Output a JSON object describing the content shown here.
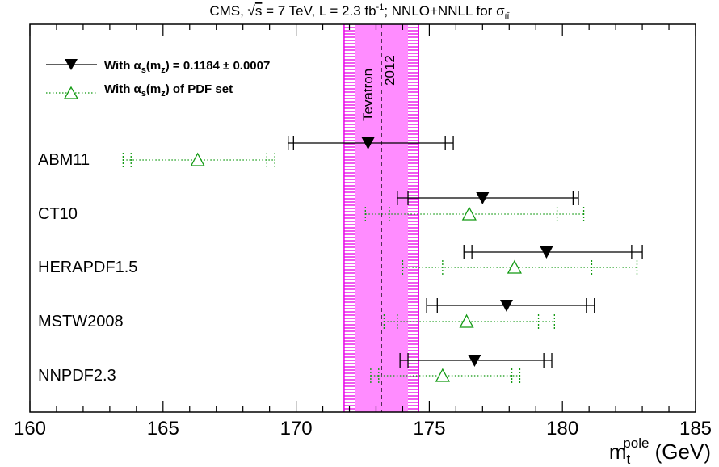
{
  "chart_data": {
    "type": "scatter",
    "title": {
      "prefix": "CMS, ",
      "sqrt": "s",
      "energy": " = 7 TeV, L = 2.3 fb",
      "lumi_sup": "-1",
      "suffix": "; NNLO+NNLL for ",
      "sigma": "σ",
      "sigma_sub": "tt̄"
    },
    "xlabel": {
      "main": "m",
      "sub": "t",
      "sup": "pole",
      "unit": " (GeV)"
    },
    "xlim": [
      160,
      185
    ],
    "xticks": [
      160,
      165,
      170,
      175,
      180,
      185
    ],
    "xtick_labels": [
      "160",
      "165",
      "170",
      "175",
      "180",
      "185"
    ],
    "minor_tick_step": 1,
    "band": {
      "label_line1": "Tevatron",
      "label_line2": "2012",
      "central": 173.2,
      "low": 171.8,
      "high": 174.6,
      "inner_low": 172.2,
      "inner_high": 174.2,
      "color": "#ff8cff",
      "hatch_color": "#e800e8"
    },
    "legend": [
      {
        "text_pre": "With ",
        "alpha": "α",
        "alpha_sub": "s",
        "paren_open": "(m",
        "mz_sub": "z",
        "text_post": ") = 0.1184 ± 0.0007",
        "marker": "filled-triangle-down",
        "color": "#000000",
        "line": "solid"
      },
      {
        "text_pre": "With ",
        "alpha": "α",
        "alpha_sub": "s",
        "paren_open": "(m",
        "mz_sub": "z",
        "text_post": ") of PDF set",
        "marker": "open-triangle-up",
        "color": "#119911",
        "line": "dotted"
      }
    ],
    "series": [
      {
        "name": "With αs(mz) = 0.1184 ± 0.0007",
        "color": "#000000",
        "marker": "filled-triangle-down",
        "line": "solid",
        "points": [
          {
            "category": "ABM11",
            "value": 172.7,
            "inner": [
              169.9,
              175.6
            ],
            "outer": [
              169.7,
              175.9
            ]
          },
          {
            "category": "CT10",
            "value": 177.0,
            "inner": [
              174.2,
              180.4
            ],
            "outer": [
              173.8,
              180.6
            ]
          },
          {
            "category": "HERAPDF1.5",
            "value": 179.4,
            "inner": [
              176.6,
              182.6
            ],
            "outer": [
              176.3,
              183.0
            ]
          },
          {
            "category": "MSTW2008",
            "value": 177.9,
            "inner": [
              175.3,
              180.9
            ],
            "outer": [
              174.9,
              181.2
            ]
          },
          {
            "category": "NNPDF2.3",
            "value": 176.7,
            "inner": [
              174.2,
              179.3
            ],
            "outer": [
              173.9,
              179.6
            ]
          }
        ]
      },
      {
        "name": "With αs(mz) of PDF set",
        "color": "#119911",
        "marker": "open-triangle-up",
        "line": "dotted",
        "points": [
          {
            "category": "ABM11",
            "value": 166.3,
            "inner": [
              163.8,
              168.9
            ],
            "outer": [
              163.5,
              169.2
            ]
          },
          {
            "category": "CT10",
            "value": 176.5,
            "inner": [
              173.5,
              179.8
            ],
            "outer": [
              172.6,
              180.8
            ]
          },
          {
            "category": "HERAPDF1.5",
            "value": 178.2,
            "inner": [
              175.5,
              181.1
            ],
            "outer": [
              174.0,
              182.8
            ]
          },
          {
            "category": "MSTW2008",
            "value": 176.4,
            "inner": [
              173.8,
              179.1
            ],
            "outer": [
              173.3,
              179.7
            ]
          },
          {
            "category": "NNPDF2.3",
            "value": 175.5,
            "inner": [
              173.1,
              178.1
            ],
            "outer": [
              172.8,
              178.4
            ]
          }
        ]
      }
    ],
    "categories": [
      "ABM11",
      "CT10",
      "HERAPDF1.5",
      "MSTW2008",
      "NNPDF2.3"
    ]
  }
}
